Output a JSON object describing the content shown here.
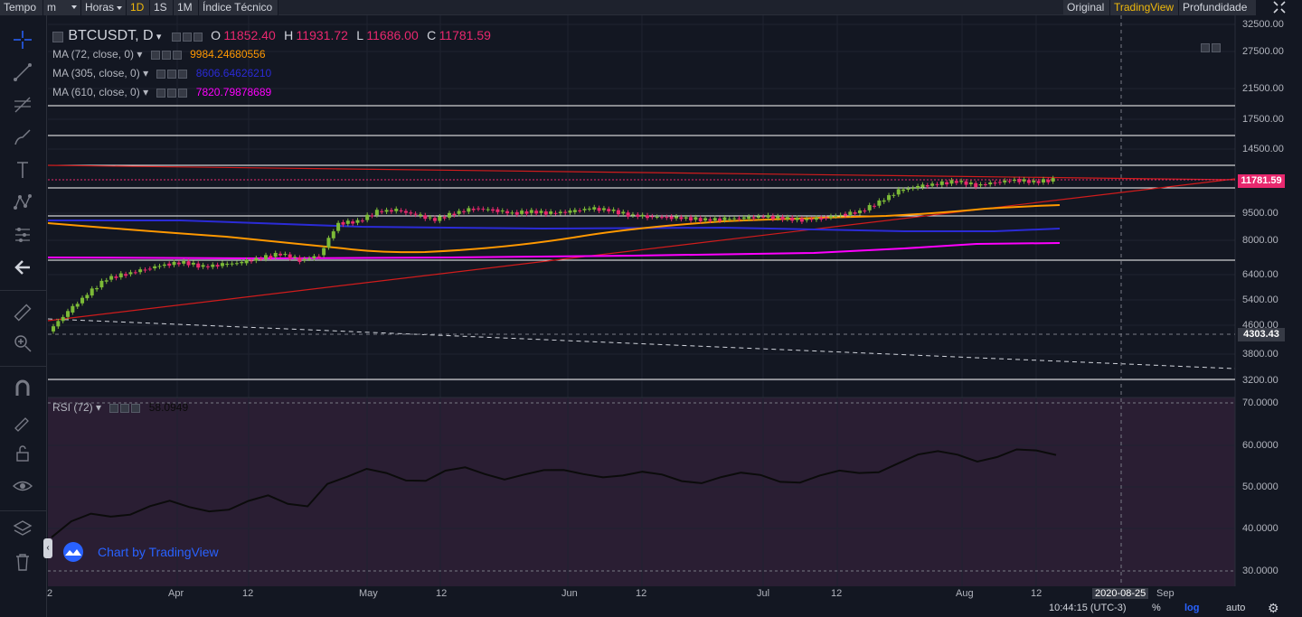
{
  "toolbar": {
    "tempo": "Tempo",
    "interval": "m",
    "horas": "Horas",
    "d1": "1D",
    "s1": "1S",
    "m1": "1M",
    "indicator": "Índice Técnico",
    "original": "Original",
    "tradingview": "TradingView",
    "depth": "Profundidade"
  },
  "legend": {
    "symbol": "BTCUSDT, D",
    "o_label": "O",
    "o": "11852.40",
    "h_label": "H",
    "h": "11931.72",
    "l_label": "L",
    "l": "11686.00",
    "c_label": "C",
    "c": "11781.59",
    "ma72_label": "MA (72, close, 0)",
    "ma72": "9984.24680556",
    "ma305_label": "MA (305, close, 0)",
    "ma305": "8606.64626210",
    "ma610_label": "MA (610, close, 0)",
    "ma610": "7820.79878689",
    "rsi_label": "RSI (72)",
    "rsi": "58.0949"
  },
  "price_axis": [
    "32500.00",
    "27500.00",
    "21500.00",
    "17500.00",
    "14500.00",
    "11781.59",
    "9500.00",
    "8000.00",
    "6400.00",
    "5400.00",
    "4600.00",
    "4303.43",
    "3800.00",
    "3200.00"
  ],
  "rsi_axis": [
    "70.0000",
    "60.0000",
    "50.0000",
    "40.0000",
    "30.0000"
  ],
  "time_axis": [
    "2",
    "Apr",
    "12",
    "May",
    "12",
    "Jun",
    "12",
    "Jul",
    "12",
    "Aug",
    "12",
    "2020-08-25",
    "Sep"
  ],
  "watermark": "Chart by TradingView",
  "bottom": {
    "time": "10:44:15 (UTC-3)",
    "pct": "%",
    "log": "log",
    "auto": "auto"
  },
  "colors": {
    "up": "#7cba37",
    "down": "#e8286e",
    "ma72": "#ff9800",
    "ma305": "#2b2bd6",
    "ma610": "#ff00ff",
    "accent": "#f0b90b"
  },
  "chart_data": {
    "type": "candlestick",
    "title": "BTCUSDT, D",
    "x_range": [
      "2020-03-02",
      "2020-09-10"
    ],
    "y_scale": "log",
    "ylim": [
      3000,
      34000
    ],
    "close": [
      5000,
      5600,
      6200,
      6400,
      6600,
      6800,
      6900,
      6700,
      6800,
      6900,
      7100,
      7300,
      7000,
      7200,
      8900,
      9000,
      9600,
      9700,
      9400,
      9100,
      9500,
      9800,
      9700,
      9500,
      9600,
      9500,
      9600,
      9800,
      9700,
      9400,
      9300,
      9250,
      9200,
      9100,
      9150,
      9200,
      9300,
      9200,
      9100,
      9200,
      9400,
      9600,
      10200,
      11000,
      11300,
      11500,
      11700,
      11400,
      11600,
      11800,
      11650,
      11800
    ]
  }
}
